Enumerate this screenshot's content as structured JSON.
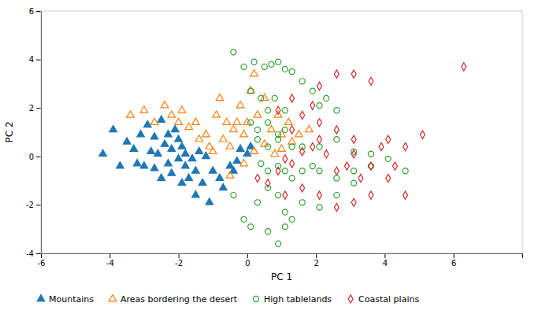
{
  "chart_data": {
    "type": "scatter",
    "xlabel": "PC 1",
    "ylabel": "PC 2",
    "xlim": [
      -6,
      8
    ],
    "ylim": [
      -4,
      6
    ],
    "xticks": [
      -6,
      -4,
      -2,
      0,
      2,
      4,
      6
    ],
    "yticks": [
      -4,
      -2,
      0,
      2,
      4,
      6
    ],
    "grid": false,
    "legend": "bottom",
    "series": [
      {
        "name": "Mountains",
        "marker": "triangle",
        "x": [
          -4.2,
          -3.9,
          -3.7,
          -3.5,
          -3.3,
          -3.2,
          -3.1,
          -3.0,
          -2.9,
          -2.8,
          -2.7,
          -2.7,
          -2.6,
          -2.5,
          -2.5,
          -2.4,
          -2.3,
          -2.3,
          -2.2,
          -2.2,
          -2.1,
          -2.0,
          -2.0,
          -1.9,
          -1.9,
          -1.8,
          -1.8,
          -1.7,
          -1.6,
          -1.5,
          -1.5,
          -1.4,
          -1.3,
          -1.2,
          -1.1,
          -1.0,
          -0.8,
          -0.7,
          -0.5,
          -0.4,
          -0.3,
          -0.2,
          0.0,
          0.1
        ],
        "values": [
          0.1,
          1.1,
          -0.4,
          0.6,
          0.3,
          -0.3,
          0.9,
          -0.4,
          1.3,
          0.2,
          0.8,
          -0.5,
          0.1,
          1.5,
          -0.9,
          0.5,
          0.9,
          -0.3,
          0.3,
          -0.7,
          1.1,
          0.7,
          -0.1,
          -1.1,
          0.4,
          -0.4,
          0.1,
          -0.9,
          -0.1,
          -1.6,
          -0.6,
          0.2,
          -1.1,
          0.0,
          -1.9,
          -0.6,
          -0.9,
          -1.3,
          -0.4,
          -0.6,
          -0.2,
          0.3,
          0.1,
          0.4
        ]
      },
      {
        "name": "Areas bordering the desert",
        "marker": "triangle-open",
        "x": [
          -3.4,
          -3.0,
          -2.7,
          -2.4,
          -2.2,
          -2.0,
          -1.9,
          -1.7,
          -1.5,
          -1.4,
          -1.2,
          -1.1,
          -1.0,
          -0.9,
          -0.8,
          -0.7,
          -0.6,
          -0.5,
          -0.4,
          -0.3,
          -0.2,
          -0.1,
          0.0,
          0.1,
          0.2,
          0.3,
          0.5,
          0.7,
          0.9,
          1.0,
          1.2,
          1.5,
          1.8,
          0.5,
          0.2,
          -0.1,
          0.8,
          1.0,
          1.3,
          -0.5
        ],
        "values": [
          1.7,
          1.9,
          1.4,
          2.1,
          1.7,
          1.4,
          1.9,
          1.2,
          1.4,
          0.7,
          0.9,
          0.4,
          0.2,
          1.7,
          2.4,
          0.7,
          1.4,
          0.4,
          1.1,
          1.4,
          2.1,
          0.9,
          1.4,
          2.7,
          3.4,
          1.7,
          2.4,
          1.1,
          1.7,
          0.9,
          1.4,
          0.9,
          1.1,
          0.5,
          0.2,
          -0.3,
          0.1,
          0.3,
          0.6,
          -0.8
        ]
      },
      {
        "name": "High tablelands",
        "marker": "circle-open",
        "x": [
          -0.4,
          -0.1,
          0.2,
          0.5,
          0.7,
          0.9,
          1.1,
          1.3,
          1.6,
          1.9,
          2.1,
          2.3,
          2.6,
          0.1,
          0.4,
          0.6,
          0.8,
          1.1,
          0.1,
          0.3,
          0.6,
          0.9,
          1.1,
          0.3,
          0.6,
          0.9,
          1.3,
          1.6,
          0.4,
          0.6,
          0.9,
          1.1,
          1.3,
          1.6,
          1.9,
          2.1,
          2.6,
          3.1,
          3.6,
          4.1,
          0.6,
          0.9,
          1.1,
          1.3,
          0.6,
          0.9,
          1.1,
          1.6,
          2.1,
          2.6,
          3.1,
          0.3,
          -0.1,
          0.1,
          -0.4,
          2.1,
          2.6,
          3.1,
          3.6,
          4.6
        ],
        "values": [
          4.3,
          3.7,
          3.9,
          3.7,
          3.8,
          3.9,
          3.6,
          3.5,
          3.1,
          2.7,
          2.1,
          2.4,
          1.9,
          2.7,
          2.4,
          1.9,
          2.4,
          1.9,
          1.4,
          1.1,
          1.4,
          0.9,
          1.1,
          0.7,
          0.4,
          0.7,
          0.4,
          0.4,
          -0.3,
          -0.6,
          -0.4,
          -0.6,
          -0.9,
          -0.6,
          -0.4,
          -0.6,
          -0.9,
          -0.6,
          -0.4,
          -0.1,
          -1.3,
          -1.6,
          -2.3,
          -2.6,
          -3.1,
          -3.6,
          -2.9,
          -1.9,
          -2.1,
          -1.6,
          -1.1,
          -1.9,
          -2.6,
          -2.9,
          -1.6,
          0.4,
          0.7,
          0.2,
          0.1,
          -0.6
        ]
      },
      {
        "name": "Coastal plains",
        "marker": "diamond-open",
        "x": [
          0.3,
          0.6,
          0.9,
          1.1,
          1.3,
          1.6,
          1.9,
          2.1,
          2.3,
          2.6,
          2.9,
          3.1,
          3.3,
          3.6,
          3.9,
          4.1,
          4.3,
          4.6,
          5.1,
          6.3,
          1.1,
          1.6,
          2.1,
          2.6,
          3.1,
          3.6,
          4.1,
          4.6,
          1.3,
          1.6,
          2.1,
          2.6,
          3.1,
          0.9,
          1.3,
          1.9,
          2.1,
          2.6,
          3.1,
          3.6
        ],
        "values": [
          -0.9,
          -1.1,
          -0.6,
          -0.1,
          -0.3,
          0.2,
          0.4,
          0.7,
          0.1,
          -0.6,
          -0.4,
          0.1,
          -0.9,
          -0.4,
          0.4,
          0.7,
          -0.4,
          0.4,
          0.9,
          3.7,
          -1.6,
          -1.3,
          -1.6,
          -2.1,
          -1.9,
          -1.6,
          -0.9,
          -1.6,
          1.1,
          1.7,
          1.4,
          1.1,
          0.7,
          1.9,
          2.4,
          2.1,
          2.9,
          3.4,
          3.4,
          3.1
        ]
      }
    ]
  }
}
